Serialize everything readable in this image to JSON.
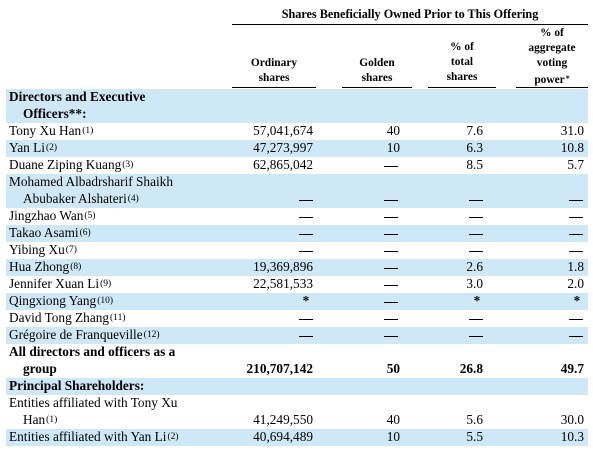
{
  "header": {
    "group_title": "Shares Beneficially Owned Prior to This Offering",
    "col_ordinary": [
      "Ordinary",
      "shares"
    ],
    "col_golden": [
      "Golden",
      "shares"
    ],
    "col_total": [
      "% of",
      "total",
      "shares"
    ],
    "col_voting": [
      "% of",
      "aggregate",
      "voting",
      "power"
    ],
    "voting_mark": "*"
  },
  "rows": [
    {
      "name": [
        "Directors and Executive",
        "Officers**:"
      ],
      "section": true
    },
    {
      "name": [
        "Tony Xu Han"
      ],
      "sup": "(1)",
      "ordinary": "57,041,674",
      "golden": "40",
      "total": "7.6",
      "voting": "31.0"
    },
    {
      "name": [
        "Yan Li"
      ],
      "sup": "(2)",
      "ordinary": "47,273,997",
      "golden": "10",
      "total": "6.3",
      "voting": "10.8"
    },
    {
      "name": [
        "Duane Ziping Kuang"
      ],
      "sup": "(3)",
      "ordinary": "62,865,042",
      "golden": "—",
      "total": "8.5",
      "voting": "5.7"
    },
    {
      "name": [
        "Mohamed Albadrsharif Shaikh",
        "Abubaker Alshateri"
      ],
      "sup": "(4)",
      "ordinary": "—",
      "golden": "—",
      "total": "—",
      "voting": "—"
    },
    {
      "name": [
        "Jingzhao Wan"
      ],
      "sup": "(5)",
      "ordinary": "—",
      "golden": "—",
      "total": "—",
      "voting": "—"
    },
    {
      "name": [
        "Takao Asami"
      ],
      "sup": "(6)",
      "ordinary": "—",
      "golden": "—",
      "total": "—",
      "voting": "—"
    },
    {
      "name": [
        "Yibing Xu"
      ],
      "sup": "(7)",
      "ordinary": "—",
      "golden": "—",
      "total": "—",
      "voting": "—"
    },
    {
      "name": [
        "Hua Zhong"
      ],
      "sup": "(8)",
      "ordinary": "19,369,896",
      "golden": "—",
      "total": "2.6",
      "voting": "1.8"
    },
    {
      "name": [
        "Jennifer Xuan Li"
      ],
      "sup": "(9)",
      "ordinary": "22,581,533",
      "golden": "—",
      "total": "3.0",
      "voting": "2.0"
    },
    {
      "name": [
        "Qingxiong Yang"
      ],
      "sup": "(10)",
      "ordinary": "*",
      "golden": "—",
      "total": "*",
      "voting": "*"
    },
    {
      "name": [
        "David Tong Zhang"
      ],
      "sup": "(11)",
      "ordinary": "—",
      "golden": "—",
      "total": "—",
      "voting": "—"
    },
    {
      "name": [
        "Grégoire de Franqueville"
      ],
      "sup": "(12)",
      "ordinary": "—",
      "golden": "—",
      "total": "—",
      "voting": "—"
    },
    {
      "name": [
        "All directors and officers as a",
        "group"
      ],
      "bold": true,
      "ordinary": "210,707,142",
      "golden": "50",
      "total": "26.8",
      "voting": "49.7"
    },
    {
      "name": [
        "Principal Shareholders:"
      ],
      "section": true
    },
    {
      "name": [
        "Entities affiliated with Tony Xu",
        "Han"
      ],
      "sup": "(1)",
      "ordinary": "41,249,550",
      "golden": "40",
      "total": "5.6",
      "voting": "30.0"
    },
    {
      "name": [
        "Entities affiliated with Yan Li"
      ],
      "sup": "(2)",
      "ordinary": "40,694,489",
      "golden": "10",
      "total": "5.5",
      "voting": "10.3"
    }
  ]
}
